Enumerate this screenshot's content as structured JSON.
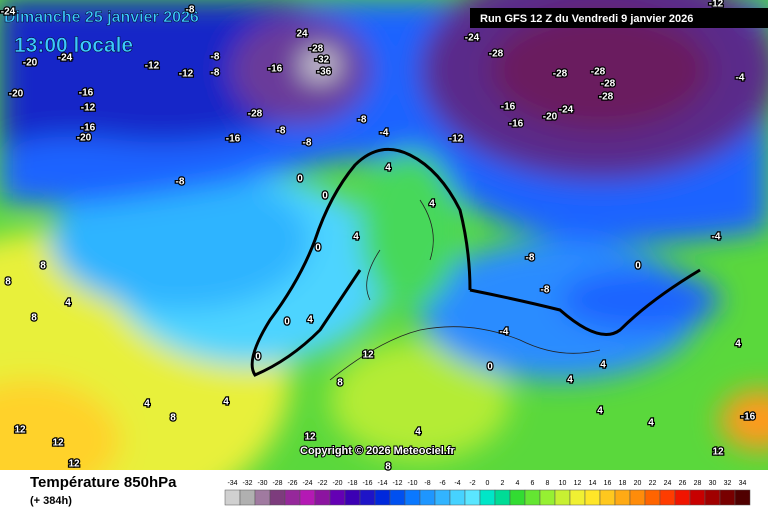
{
  "header": {
    "date": "Dimanche 25 janvier 2026",
    "time": "13:00 locale",
    "run": "Run GFS 12 Z du Vendredi 9 janvier 2026"
  },
  "map": {
    "labels": [
      "-24",
      "-20",
      "-24",
      "-12",
      "-12",
      "-8",
      "-8",
      "-8",
      "24",
      "-28",
      "-32",
      "-36",
      "-16",
      "-28",
      "-8",
      "-16",
      "-8",
      "-4",
      "-8",
      "-12",
      "-24",
      "-28",
      "-28",
      "-28",
      "-28",
      "-28",
      "-16",
      "-16",
      "-20",
      "-24",
      "-4",
      "-12",
      "-16",
      "-12",
      "-16",
      "-20",
      "-20",
      "-8",
      "0",
      "0",
      "4",
      "4",
      "0",
      "0",
      "0",
      "4",
      "4",
      "8",
      "8",
      "4",
      "8",
      "4",
      "8",
      "4",
      "12",
      "8",
      "-8",
      "-8",
      "-4",
      "0",
      "-4",
      "0",
      "4",
      "4",
      "4",
      "4",
      "4",
      "12",
      "12",
      "12",
      "12",
      "8",
      "4",
      "12",
      "-16"
    ]
  },
  "footer": {
    "title": "Température 850hPa",
    "lead_time": "(+ 384h)",
    "copyright": "Copyright © 2026 Meteociel.fr"
  },
  "legend": {
    "values": [
      -34,
      -32,
      -30,
      -28,
      -26,
      -24,
      -22,
      -20,
      -18,
      -16,
      -14,
      -12,
      -10,
      -8,
      -6,
      -4,
      -2,
      0,
      2,
      4,
      6,
      8,
      10,
      12,
      14,
      16,
      18,
      20,
      22,
      24,
      26,
      28,
      30,
      32,
      34
    ],
    "colors": [
      "#d0d0d0",
      "#b0b0b0",
      "#a07aa0",
      "#7d3c7d",
      "#96289b",
      "#b419b4",
      "#8c14a0",
      "#6400b4",
      "#3c00b4",
      "#1e14c8",
      "#0028dc",
      "#0050f0",
      "#0a78ff",
      "#1e96ff",
      "#32b4ff",
      "#46d2ff",
      "#5ae6ff",
      "#00e6c8",
      "#00dc96",
      "#32dc32",
      "#64e632",
      "#96f032",
      "#c8f032",
      "#f0f032",
      "#ffe628",
      "#ffc81e",
      "#ffaa14",
      "#ff8c0a",
      "#ff6400",
      "#ff3c00",
      "#f01400",
      "#c80000",
      "#a00000",
      "#780000",
      "#500000"
    ]
  }
}
